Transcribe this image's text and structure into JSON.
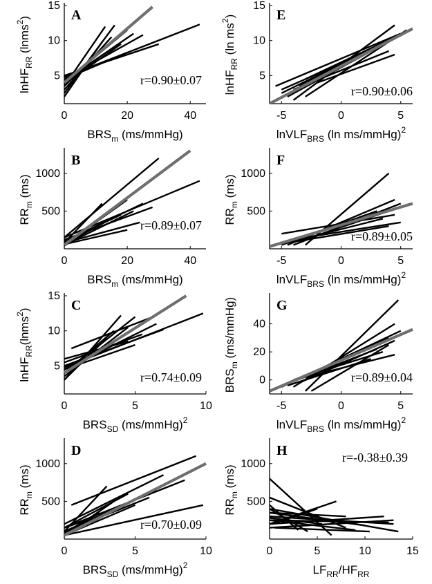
{
  "figure": {
    "colors": {
      "subject_line": "#000000",
      "group_line": "#6f6f6f",
      "axis": "#000000"
    }
  },
  "chart_data": [
    {
      "type": "line",
      "panel": "A",
      "r_text": "r=0.90±0.07",
      "ylabel": {
        "base": "lnHF",
        "sub": "RR",
        "rest": " (lnms",
        "sup": "2",
        "tail": ")"
      },
      "xlabel": {
        "base": "BRS",
        "sub": "m",
        "rest": " (ms/mmHg)"
      },
      "xlim": [
        0,
        45
      ],
      "ylim": [
        1,
        15
      ],
      "xticks": [
        0,
        20,
        40
      ],
      "yticks": [
        5,
        10,
        15
      ],
      "series": [
        {
          "x": [
            0,
            43
          ],
          "y": [
            4.8,
            12.3
          ]
        },
        {
          "x": [
            0,
            13
          ],
          "y": [
            3.5,
            12
          ]
        },
        {
          "x": [
            0,
            16
          ],
          "y": [
            2.5,
            12.2
          ]
        },
        {
          "x": [
            0,
            15
          ],
          "y": [
            3,
            10.5
          ]
        },
        {
          "x": [
            0,
            20
          ],
          "y": [
            4,
            11.5
          ]
        },
        {
          "x": [
            0,
            22
          ],
          "y": [
            4.2,
            11
          ]
        },
        {
          "x": [
            0,
            18
          ],
          "y": [
            3.8,
            9.5
          ]
        },
        {
          "x": [
            0,
            25
          ],
          "y": [
            4.5,
            10.8
          ]
        },
        {
          "x": [
            0,
            12
          ],
          "y": [
            2,
            9.8
          ]
        },
        {
          "x": [
            0,
            30
          ],
          "y": [
            5,
            9.5
          ]
        },
        {
          "x": [
            0,
            10
          ],
          "y": [
            3.5,
            8
          ]
        },
        {
          "x": [
            0,
            20
          ],
          "y": [
            4.5,
            8.3
          ]
        },
        {
          "x": [
            0,
            28
          ],
          "y": [
            4,
            14.8
          ],
          "group": true
        }
      ]
    },
    {
      "type": "line",
      "panel": "B",
      "r_text": "r=0.89±0.07",
      "ylabel": {
        "base": "RR",
        "sub": "m",
        "rest": " (ms)",
        "sup": "",
        "tail": ""
      },
      "xlabel": {
        "base": "BRS",
        "sub": "m",
        "rest": " (ms/mmHg)"
      },
      "xlim": [
        0,
        45
      ],
      "ylim": [
        0,
        1300
      ],
      "xticks": [
        0,
        20,
        40
      ],
      "yticks": [
        500,
        1000
      ],
      "series": [
        {
          "x": [
            0,
            30
          ],
          "y": [
            150,
            1200
          ]
        },
        {
          "x": [
            0,
            43
          ],
          "y": [
            150,
            900
          ]
        },
        {
          "x": [
            0,
            20
          ],
          "y": [
            50,
            650
          ]
        },
        {
          "x": [
            0,
            25
          ],
          "y": [
            100,
            600
          ]
        },
        {
          "x": [
            0,
            22
          ],
          "y": [
            50,
            500
          ]
        },
        {
          "x": [
            0,
            18
          ],
          "y": [
            100,
            450
          ]
        },
        {
          "x": [
            0,
            12
          ],
          "y": [
            80,
            600
          ]
        },
        {
          "x": [
            0,
            28
          ],
          "y": [
            120,
            550
          ]
        },
        {
          "x": [
            0,
            15
          ],
          "y": [
            60,
            400
          ]
        },
        {
          "x": [
            0,
            24
          ],
          "y": [
            80,
            350
          ]
        },
        {
          "x": [
            0,
            10
          ],
          "y": [
            40,
            300
          ]
        },
        {
          "x": [
            0,
            20
          ],
          "y": [
            60,
            250
          ]
        },
        {
          "x": [
            0,
            40
          ],
          "y": [
            50,
            1300
          ],
          "group": true
        }
      ]
    },
    {
      "type": "line",
      "panel": "C",
      "r_text": "r=0.74±0.09",
      "ylabel": {
        "base": "lnHF",
        "sub": "RR",
        "rest": "(lnms",
        "sup": "2",
        "tail": ")"
      },
      "xlabel": {
        "base": "BRS",
        "sub": "SD",
        "rest": " (ms/mmHg)",
        "sup": "2"
      },
      "xlim": [
        0,
        10
      ],
      "ylim": [
        1,
        15
      ],
      "xticks": [
        0,
        5,
        10
      ],
      "yticks": [
        5,
        10,
        15
      ],
      "series": [
        {
          "x": [
            0,
            9.8
          ],
          "y": [
            4.8,
            12.5
          ]
        },
        {
          "x": [
            0,
            4
          ],
          "y": [
            3,
            12.2
          ]
        },
        {
          "x": [
            0,
            5
          ],
          "y": [
            4,
            12
          ]
        },
        {
          "x": [
            0.5,
            6
          ],
          "y": [
            7.5,
            11.8
          ]
        },
        {
          "x": [
            0,
            6.5
          ],
          "y": [
            4.5,
            11
          ]
        },
        {
          "x": [
            0,
            4.5
          ],
          "y": [
            3.5,
            10.5
          ]
        },
        {
          "x": [
            0,
            7
          ],
          "y": [
            5,
            10.2
          ]
        },
        {
          "x": [
            0,
            3.5
          ],
          "y": [
            4,
            10
          ]
        },
        {
          "x": [
            0,
            5.5
          ],
          "y": [
            5.5,
            9.5
          ]
        },
        {
          "x": [
            0,
            3
          ],
          "y": [
            3,
            9
          ]
        },
        {
          "x": [
            0,
            4.5
          ],
          "y": [
            6,
            8.5
          ]
        },
        {
          "x": [
            0,
            5
          ],
          "y": [
            4.5,
            8
          ]
        },
        {
          "x": [
            0,
            8.6
          ],
          "y": [
            4,
            15
          ],
          "group": true
        }
      ]
    },
    {
      "type": "line",
      "panel": "D",
      "r_text": "r=0.70±0.09",
      "ylabel": {
        "base": "RR",
        "sub": "m",
        "rest": " (ms)",
        "sup": "",
        "tail": ""
      },
      "xlabel": {
        "base": "BRS",
        "sub": "SD",
        "rest": " (ms/mmHg)",
        "sup": "2"
      },
      "xlim": [
        0,
        10
      ],
      "ylim": [
        0,
        1300
      ],
      "xticks": [
        0,
        5,
        10
      ],
      "yticks": [
        500,
        1000
      ],
      "series": [
        {
          "x": [
            0.5,
            9.3
          ],
          "y": [
            450,
            1100
          ]
        },
        {
          "x": [
            0,
            3
          ],
          "y": [
            100,
            700
          ]
        },
        {
          "x": [
            0,
            7
          ],
          "y": [
            200,
            850
          ]
        },
        {
          "x": [
            0,
            8.5
          ],
          "y": [
            150,
            780
          ]
        },
        {
          "x": [
            0,
            4.5
          ],
          "y": [
            150,
            600
          ]
        },
        {
          "x": [
            0,
            6
          ],
          "y": [
            100,
            550
          ]
        },
        {
          "x": [
            0,
            3.5
          ],
          "y": [
            50,
            500
          ]
        },
        {
          "x": [
            0,
            5
          ],
          "y": [
            50,
            450
          ]
        },
        {
          "x": [
            0,
            4
          ],
          "y": [
            150,
            400
          ]
        },
        {
          "x": [
            0,
            9.8
          ],
          "y": [
            50,
            450
          ]
        },
        {
          "x": [
            0,
            2.5
          ],
          "y": [
            80,
            350
          ]
        },
        {
          "x": [
            0,
            6.5
          ],
          "y": [
            100,
            650
          ]
        },
        {
          "x": [
            0,
            10
          ],
          "y": [
            50,
            1000
          ],
          "group": true
        }
      ]
    },
    {
      "type": "line",
      "panel": "E",
      "r_text": "r=0.90±0.06",
      "ylabel": {
        "base": "lnHF",
        "sub": "RR",
        "rest": " (ln ms",
        "sup": "2",
        "tail": ")"
      },
      "xlabel": {
        "base": "lnVLF",
        "sub": "BRS",
        "rest": " (ln ms/mmHg)",
        "sup": "2"
      },
      "xlim": [
        -6,
        6
      ],
      "ylim": [
        1,
        15
      ],
      "xticks": [
        -5,
        0,
        5
      ],
      "yticks": [
        5,
        10,
        15
      ],
      "series": [
        {
          "x": [
            -5.5,
            5
          ],
          "y": [
            3.5,
            11
          ]
        },
        {
          "x": [
            -4,
            4.5
          ],
          "y": [
            1.5,
            12.2
          ]
        },
        {
          "x": [
            -3,
            5.5
          ],
          "y": [
            2,
            11.5
          ]
        },
        {
          "x": [
            -5,
            4
          ],
          "y": [
            2.5,
            10
          ]
        },
        {
          "x": [
            -4.5,
            5
          ],
          "y": [
            2,
            10.8
          ]
        },
        {
          "x": [
            -3.5,
            3.5
          ],
          "y": [
            3.5,
            9.5
          ]
        },
        {
          "x": [
            -2,
            4.5
          ],
          "y": [
            4,
            8
          ]
        },
        {
          "x": [
            -5,
            3
          ],
          "y": [
            3,
            9
          ]
        },
        {
          "x": [
            -4,
            4
          ],
          "y": [
            3,
            8.5
          ]
        },
        {
          "x": [
            -3,
            4.5
          ],
          "y": [
            4.5,
            10.5
          ]
        },
        {
          "x": [
            -6,
            6
          ],
          "y": [
            1,
            11.7
          ],
          "group": true
        }
      ]
    },
    {
      "type": "line",
      "panel": "F",
      "r_text": "r=0.89±0.05",
      "ylabel": {
        "base": "RR",
        "sub": "m",
        "rest": " (ms)",
        "sup": "",
        "tail": ""
      },
      "xlabel": {
        "base": "lnVLF",
        "sub": "BRS",
        "rest": " (ln ms/mmHg)",
        "sup": "2"
      },
      "xlim": [
        -6,
        6
      ],
      "ylim": [
        0,
        1300
      ],
      "xticks": [
        -5,
        0,
        5
      ],
      "yticks": [
        500,
        1000
      ],
      "series": [
        {
          "x": [
            -3,
            4
          ],
          "y": [
            50,
            1000
          ]
        },
        {
          "x": [
            -4.5,
            4.5
          ],
          "y": [
            50,
            650
          ]
        },
        {
          "x": [
            -4,
            5
          ],
          "y": [
            50,
            600
          ]
        },
        {
          "x": [
            -5.5,
            5
          ],
          "y": [
            50,
            550
          ]
        },
        {
          "x": [
            -3.5,
            4
          ],
          "y": [
            100,
            500
          ]
        },
        {
          "x": [
            -5,
            4.5
          ],
          "y": [
            200,
            450
          ]
        },
        {
          "x": [
            -4,
            3.5
          ],
          "y": [
            100,
            400
          ]
        },
        {
          "x": [
            -3,
            5
          ],
          "y": [
            150,
            350
          ]
        },
        {
          "x": [
            -5,
            3
          ],
          "y": [
            50,
            500
          ]
        },
        {
          "x": [
            -4.5,
            4
          ],
          "y": [
            80,
            300
          ]
        },
        {
          "x": [
            -6,
            6
          ],
          "y": [
            30,
            600
          ],
          "group": true
        }
      ]
    },
    {
      "type": "line",
      "panel": "G",
      "r_text": "r=0.89±0.04",
      "ylabel": {
        "base": "BRS",
        "sub": "m",
        "rest": " (ms/mmHg)",
        "sup": "",
        "tail": ""
      },
      "xlabel": {
        "base": "lnVLF",
        "sub": "BRS",
        "rest": " (ln ms/mmHg)",
        "sup": "2"
      },
      "xlim": [
        -6,
        6
      ],
      "ylim": [
        -10,
        60
      ],
      "xticks": [
        -5,
        0,
        5
      ],
      "yticks": [
        0,
        20,
        40
      ],
      "series": [
        {
          "x": [
            -3,
            4.8
          ],
          "y": [
            -8,
            57
          ]
        },
        {
          "x": [
            -4,
            4.5
          ],
          "y": [
            -5,
            40
          ]
        },
        {
          "x": [
            -5,
            5
          ],
          "y": [
            -5,
            35
          ]
        },
        {
          "x": [
            -4.5,
            4
          ],
          "y": [
            -3,
            30
          ]
        },
        {
          "x": [
            -3.5,
            4.5
          ],
          "y": [
            -2,
            28
          ]
        },
        {
          "x": [
            -2.5,
            4
          ],
          "y": [
            -8,
            25
          ]
        },
        {
          "x": [
            -5.5,
            3
          ],
          "y": [
            -6,
            22
          ]
        },
        {
          "x": [
            -4,
            3.5
          ],
          "y": [
            0,
            20
          ]
        },
        {
          "x": [
            -3,
            4.5
          ],
          "y": [
            2,
            18
          ]
        },
        {
          "x": [
            -4.5,
            2.5
          ],
          "y": [
            -4,
            15
          ]
        },
        {
          "x": [
            -6,
            6
          ],
          "y": [
            -8,
            36
          ],
          "group": true
        }
      ]
    },
    {
      "type": "line",
      "panel": "H",
      "r_text": "r=-0.38±0.39",
      "ylabel": {
        "base": "RR",
        "sub": "m",
        "rest": " (ms)",
        "sup": "",
        "tail": ""
      },
      "xlabel": {
        "base": "LF",
        "sub": "RR",
        "rest": "/HF",
        "sub2": "RR"
      },
      "xlim": [
        0,
        15
      ],
      "ylim": [
        0,
        1300
      ],
      "xticks": [
        0,
        5,
        10,
        15
      ],
      "yticks": [
        500,
        1000
      ],
      "series": [
        {
          "x": [
            0,
            6.5
          ],
          "y": [
            800,
            50
          ]
        },
        {
          "x": [
            0,
            13
          ],
          "y": [
            300,
            200
          ]
        },
        {
          "x": [
            0,
            12
          ],
          "y": [
            200,
            300
          ]
        },
        {
          "x": [
            0,
            13.5
          ],
          "y": [
            400,
            100
          ]
        },
        {
          "x": [
            0,
            7
          ],
          "y": [
            200,
            500
          ]
        },
        {
          "x": [
            0,
            8
          ],
          "y": [
            550,
            150
          ]
        },
        {
          "x": [
            0,
            10
          ],
          "y": [
            350,
            180
          ]
        },
        {
          "x": [
            0.3,
            5
          ],
          "y": [
            200,
            400
          ]
        },
        {
          "x": [
            0,
            9
          ],
          "y": [
            250,
            120
          ]
        },
        {
          "x": [
            0,
            4
          ],
          "y": [
            400,
            100
          ]
        },
        {
          "x": [
            0,
            12.5
          ],
          "y": [
            250,
            220
          ]
        },
        {
          "x": [
            0,
            6
          ],
          "y": [
            300,
            250
          ]
        },
        {
          "x": [
            0.5,
            10.5
          ],
          "y": [
            150,
            100
          ]
        },
        {
          "x": [
            0,
            3
          ],
          "y": [
            450,
            120
          ]
        },
        {
          "x": [
            0,
            8
          ],
          "y": [
            350,
            300
          ]
        },
        {
          "x": [
            0,
            5.5
          ],
          "y": [
            280,
            200
          ]
        },
        {
          "x": [
            0,
            13
          ],
          "y": [
            150,
            250
          ]
        }
      ]
    }
  ]
}
